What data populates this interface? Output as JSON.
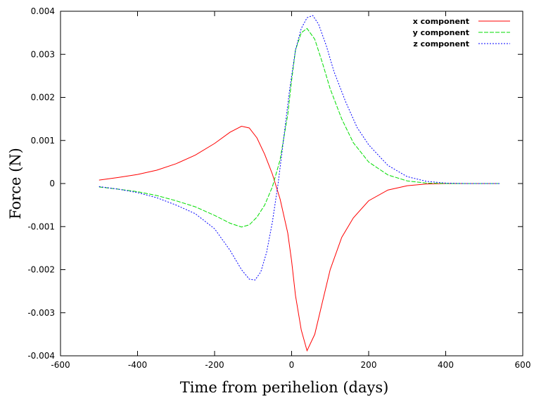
{
  "chart_data": {
    "type": "line",
    "title": "",
    "xlabel": "Time from perihelion (days)",
    "ylabel": "Force (N)",
    "xlim": [
      -600,
      600
    ],
    "ylim": [
      -0.004,
      0.004
    ],
    "xticks": [
      "-600",
      "-400",
      "-200",
      "0",
      "200",
      "400",
      "600"
    ],
    "yticks": [
      "-0.004",
      "-0.003",
      "-0.002",
      "-0.001",
      "0",
      "0.001",
      "0.002",
      "0.003",
      "0.004"
    ],
    "grid": false,
    "legend_position": "top-right",
    "series": [
      {
        "name": "x component",
        "color": "#ff0000",
        "dash": "solid",
        "x": [
          -500,
          -450,
          -400,
          -350,
          -300,
          -250,
          -200,
          -160,
          -130,
          -110,
          -90,
          -70,
          -50,
          -30,
          -10,
          0,
          10,
          25,
          40,
          60,
          80,
          100,
          130,
          160,
          200,
          250,
          300,
          350,
          400,
          450,
          500,
          540
        ],
        "y": [
          8e-05,
          0.00014,
          0.00021,
          0.00031,
          0.00046,
          0.00066,
          0.00093,
          0.00119,
          0.00133,
          0.00129,
          0.00106,
          0.00068,
          0.00022,
          -0.00036,
          -0.00115,
          -0.0018,
          -0.0026,
          -0.0034,
          -0.00388,
          -0.0035,
          -0.00275,
          -0.002,
          -0.00125,
          -0.0008,
          -0.0004,
          -0.00015,
          -5e-05,
          -1e-05,
          0.0,
          0.0,
          0.0,
          0.0
        ]
      },
      {
        "name": "y component",
        "color": "#00dd00",
        "dash": "dashed",
        "x": [
          -500,
          -450,
          -400,
          -350,
          -300,
          -250,
          -200,
          -160,
          -130,
          -110,
          -90,
          -70,
          -50,
          -30,
          -10,
          0,
          10,
          25,
          40,
          60,
          80,
          100,
          130,
          160,
          200,
          250,
          300,
          350,
          400,
          450,
          500,
          540
        ],
        "y": [
          -8e-05,
          -0.00013,
          -0.00019,
          -0.00028,
          -0.0004,
          -0.00054,
          -0.00074,
          -0.00092,
          -0.00101,
          -0.00096,
          -0.00078,
          -0.0005,
          -8e-05,
          0.00055,
          0.0016,
          0.0024,
          0.0031,
          0.0035,
          0.0036,
          0.00335,
          0.0028,
          0.0022,
          0.0015,
          0.00095,
          0.0005,
          0.0002,
          6e-05,
          1e-05,
          0.0,
          0.0,
          0.0,
          0.0
        ]
      },
      {
        "name": "z component",
        "color": "#0000ff",
        "dash": "dotted",
        "x": [
          -500,
          -450,
          -400,
          -350,
          -300,
          -250,
          -200,
          -160,
          -130,
          -110,
          -95,
          -80,
          -65,
          -50,
          -35,
          -20,
          -5,
          10,
          25,
          40,
          55,
          70,
          90,
          110,
          140,
          170,
          200,
          250,
          300,
          350,
          400,
          450,
          500,
          540
        ],
        "y": [
          -7e-05,
          -0.00013,
          -0.00021,
          -0.00033,
          -0.0005,
          -0.0007,
          -0.00105,
          -0.00155,
          -0.002,
          -0.00222,
          -0.00224,
          -0.00205,
          -0.0016,
          -0.0009,
          0.0,
          0.0011,
          0.0022,
          0.0031,
          0.0036,
          0.00385,
          0.0039,
          0.0037,
          0.0032,
          0.0026,
          0.0019,
          0.0013,
          0.0009,
          0.00042,
          0.00016,
          5e-05,
          1e-05,
          0.0,
          0.0,
          0.0
        ]
      }
    ]
  }
}
